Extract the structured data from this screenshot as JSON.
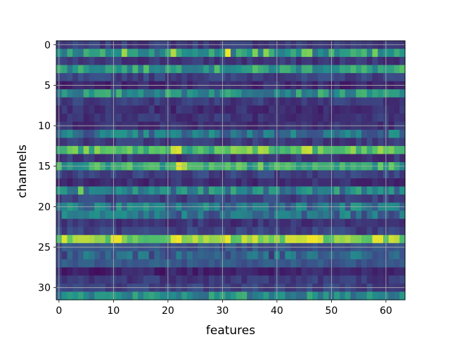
{
  "chart_data": {
    "type": "heatmap",
    "title": "",
    "xlabel": "features",
    "ylabel": "channels",
    "x_range": [
      -0.5,
      63.5
    ],
    "y_range": [
      -0.5,
      31.5
    ],
    "y_inverted": true,
    "x_ticks": [
      0,
      10,
      20,
      30,
      40,
      50,
      60
    ],
    "x_tick_labels": [
      "0",
      "10",
      "20",
      "30",
      "40",
      "50",
      "60"
    ],
    "y_ticks": [
      0,
      5,
      10,
      15,
      20,
      25,
      30
    ],
    "y_tick_labels": [
      "0",
      "5",
      "10",
      "15",
      "20",
      "25",
      "30"
    ],
    "grid": true,
    "colormap": "viridis",
    "value_range": [
      0,
      1
    ],
    "n_channels": 32,
    "n_features": 64,
    "channel_base_values": [
      0.18,
      0.52,
      0.16,
      0.55,
      0.2,
      0.12,
      0.5,
      0.18,
      0.14,
      0.16,
      0.15,
      0.38,
      0.18,
      0.68,
      0.16,
      0.6,
      0.2,
      0.14,
      0.45,
      0.2,
      0.4,
      0.36,
      0.16,
      0.2,
      0.82,
      0.26,
      0.32,
      0.28,
      0.1,
      0.18,
      0.2,
      0.48
    ],
    "highlights": [
      {
        "channel": 1,
        "feature": 12,
        "value": 0.85
      },
      {
        "channel": 1,
        "feature": 21,
        "value": 0.88
      },
      {
        "channel": 1,
        "feature": 31,
        "value": 0.98
      },
      {
        "channel": 1,
        "feature": 36,
        "value": 0.8
      },
      {
        "channel": 1,
        "feature": 38,
        "value": 0.82
      },
      {
        "channel": 1,
        "feature": 45,
        "value": 0.78
      },
      {
        "channel": 1,
        "feature": 46,
        "value": 0.8
      },
      {
        "channel": 1,
        "feature": 58,
        "value": 0.78
      },
      {
        "channel": 13,
        "feature": 21,
        "value": 0.92
      },
      {
        "channel": 13,
        "feature": 22,
        "value": 0.95
      },
      {
        "channel": 13,
        "feature": 35,
        "value": 0.85
      },
      {
        "channel": 13,
        "feature": 37,
        "value": 0.88
      },
      {
        "channel": 13,
        "feature": 38,
        "value": 0.85
      },
      {
        "channel": 13,
        "feature": 45,
        "value": 0.9
      },
      {
        "channel": 13,
        "feature": 46,
        "value": 0.92
      },
      {
        "channel": 13,
        "feature": 59,
        "value": 0.85
      },
      {
        "channel": 15,
        "feature": 22,
        "value": 0.96
      },
      {
        "channel": 15,
        "feature": 23,
        "value": 0.88
      },
      {
        "channel": 15,
        "feature": 33,
        "value": 0.78
      },
      {
        "channel": 15,
        "feature": 37,
        "value": 0.8
      },
      {
        "channel": 18,
        "feature": 4,
        "value": 0.78
      },
      {
        "channel": 24,
        "feature": 1,
        "value": 0.95
      },
      {
        "channel": 24,
        "feature": 46,
        "value": 0.98
      },
      {
        "channel": 24,
        "feature": 47,
        "value": 0.98
      },
      {
        "channel": 24,
        "feature": 58,
        "value": 0.96
      },
      {
        "channel": 24,
        "feature": 59,
        "value": 0.96
      }
    ]
  }
}
